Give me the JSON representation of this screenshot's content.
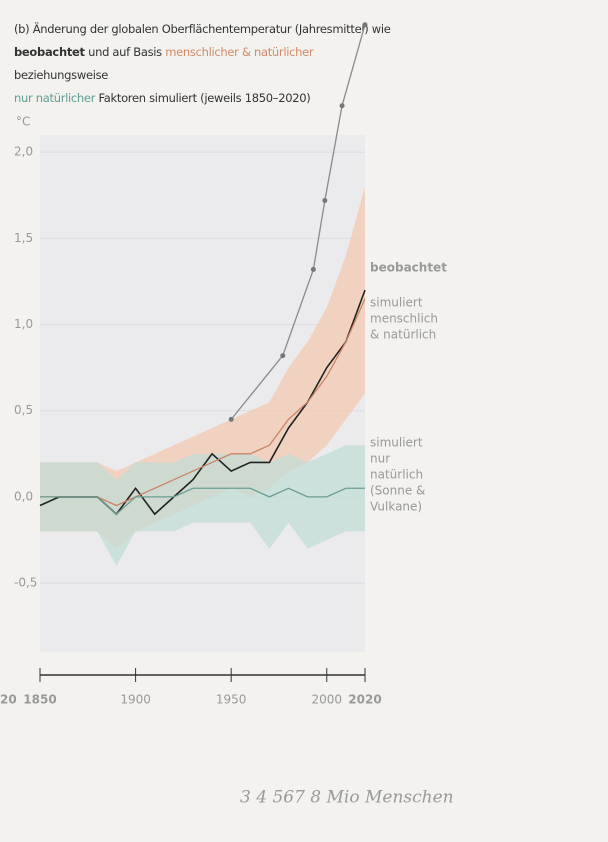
{
  "chart_data": {
    "type": "line",
    "title": [
      "(b) Änderung der globalen Oberflächentemperatur (Jahresmittel) wie",
      "beobachtet",
      " und auf Basis ",
      "menschlicher & natürlicher",
      " beziehungsweise",
      "nur natürlicher",
      " Faktoren simuliert (jeweils 1850–2020)"
    ],
    "y_unit": "°C",
    "x": [
      1850,
      1860,
      1870,
      1880,
      1890,
      1900,
      1910,
      1920,
      1930,
      1940,
      1950,
      1960,
      1970,
      1980,
      1990,
      2000,
      2010,
      2020
    ],
    "series": [
      {
        "name": [
          "beobachtet"
        ],
        "color": "#222222",
        "values": [
          -0.05,
          0.0,
          0.0,
          0.0,
          -0.1,
          0.05,
          -0.1,
          0.0,
          0.1,
          0.25,
          0.15,
          0.2,
          0.2,
          0.4,
          0.55,
          0.75,
          0.9,
          1.2
        ]
      },
      {
        "name": [
          "simuliert",
          "menschlich",
          "& natürlich"
        ],
        "color": "#c98466",
        "band_color": "#f3c7ae",
        "values": [
          0.0,
          0.0,
          0.0,
          0.0,
          -0.05,
          0.0,
          0.05,
          0.1,
          0.15,
          0.2,
          0.25,
          0.25,
          0.3,
          0.45,
          0.55,
          0.7,
          0.9,
          1.15
        ],
        "upper": [
          0.2,
          0.2,
          0.2,
          0.2,
          0.15,
          0.2,
          0.25,
          0.3,
          0.35,
          0.4,
          0.45,
          0.5,
          0.55,
          0.75,
          0.9,
          1.1,
          1.4,
          1.8
        ],
        "lower": [
          -0.2,
          -0.2,
          -0.2,
          -0.2,
          -0.3,
          -0.2,
          -0.15,
          -0.1,
          -0.05,
          0.0,
          0.05,
          0.0,
          0.05,
          0.15,
          0.2,
          0.3,
          0.45,
          0.6
        ]
      },
      {
        "name": [
          "simuliert",
          "nur",
          "natürlich",
          "(Sonne &",
          "Vulkane)"
        ],
        "color": "#6a9e92",
        "band_color": "#bfdbd4",
        "values": [
          0.0,
          0.0,
          0.0,
          0.0,
          -0.1,
          0.0,
          0.0,
          0.0,
          0.05,
          0.05,
          0.05,
          0.05,
          0.0,
          0.05,
          0.0,
          0.0,
          0.05,
          0.05
        ],
        "upper": [
          0.2,
          0.2,
          0.2,
          0.2,
          0.1,
          0.2,
          0.2,
          0.2,
          0.25,
          0.25,
          0.25,
          0.25,
          0.2,
          0.25,
          0.2,
          0.25,
          0.3,
          0.3
        ],
        "lower": [
          -0.2,
          -0.2,
          -0.2,
          -0.2,
          -0.4,
          -0.2,
          -0.2,
          -0.2,
          -0.15,
          -0.15,
          -0.15,
          -0.15,
          -0.3,
          -0.15,
          -0.3,
          -0.25,
          -0.2,
          -0.2
        ]
      },
      {
        "color": "#8a8a8a",
        "x": [
          1950,
          1977,
          1993,
          1999,
          2008,
          2020
        ],
        "values": [
          0.45,
          0.82,
          1.32,
          1.72,
          2.27,
          2.74
        ]
      }
    ],
    "xlim": [
      1850,
      2020
    ],
    "ylim": [
      -0.9,
      2.1
    ],
    "xticks": [
      1850,
      1900,
      1950,
      2000,
      2020
    ],
    "yticks": [
      {
        "value": -0.5,
        "label": "-0,5"
      },
      {
        "value": 0,
        "label": "0,0"
      },
      {
        "value": 0.5,
        "label": "0,5"
      },
      {
        "value": 1,
        "label": "1,0"
      },
      {
        "value": 1.5,
        "label": "1,5"
      },
      {
        "value": 2,
        "label": "2,0"
      }
    ],
    "grid": true,
    "annotations": [
      "20",
      "3  4  567  8 Mio Menschen"
    ]
  }
}
